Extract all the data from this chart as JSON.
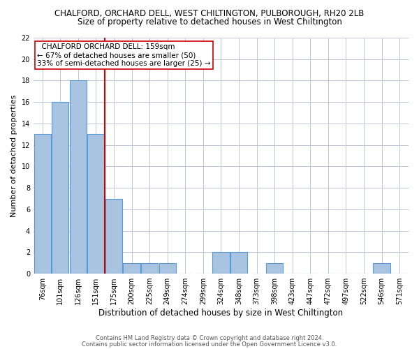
{
  "title_line1": "CHALFORD, ORCHARD DELL, WEST CHILTINGTON, PULBOROUGH, RH20 2LB",
  "title_line2": "Size of property relative to detached houses in West Chiltington",
  "xlabel": "Distribution of detached houses by size in West Chiltington",
  "ylabel": "Number of detached properties",
  "categories": [
    "76sqm",
    "101sqm",
    "126sqm",
    "151sqm",
    "175sqm",
    "200sqm",
    "225sqm",
    "249sqm",
    "274sqm",
    "299sqm",
    "324sqm",
    "348sqm",
    "373sqm",
    "398sqm",
    "423sqm",
    "447sqm",
    "472sqm",
    "497sqm",
    "522sqm",
    "546sqm",
    "571sqm"
  ],
  "values": [
    13,
    16,
    18,
    13,
    7,
    1,
    1,
    1,
    0,
    0,
    2,
    2,
    0,
    1,
    0,
    0,
    0,
    0,
    0,
    1,
    0
  ],
  "bar_color": "#a8c4e0",
  "bar_edge_color": "#5b9bd5",
  "vline_color": "#cc0000",
  "annotation_text": "  CHALFORD ORCHARD DELL: 159sqm  \n← 67% of detached houses are smaller (50)\n33% of semi-detached houses are larger (25) →",
  "annotation_box_color": "#ffffff",
  "annotation_box_edge": "#cc0000",
  "ylim": [
    0,
    22
  ],
  "yticks": [
    0,
    2,
    4,
    6,
    8,
    10,
    12,
    14,
    16,
    18,
    20,
    22
  ],
  "footer_line1": "Contains HM Land Registry data © Crown copyright and database right 2024.",
  "footer_line2": "Contains public sector information licensed under the Open Government Licence v3.0.",
  "bg_color": "#ffffff",
  "grid_color": "#c0c8d8",
  "title1_fontsize": 8.5,
  "title2_fontsize": 8.5,
  "ylabel_fontsize": 8,
  "xlabel_fontsize": 8.5,
  "tick_fontsize": 7,
  "annot_fontsize": 7.5,
  "footer_fontsize": 6
}
